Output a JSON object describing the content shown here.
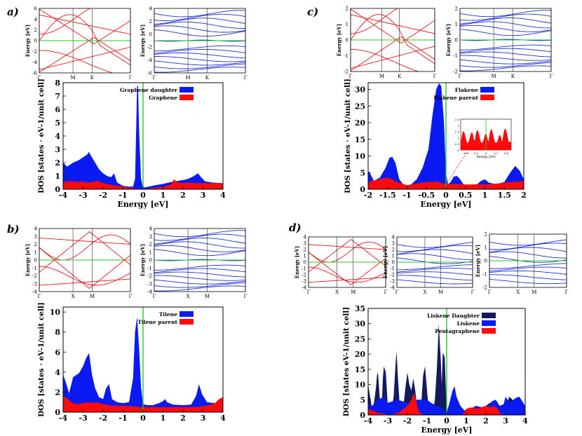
{
  "colors": {
    "band_red": "#e8141c",
    "band_blue": "#1f2fd0",
    "fermi_green": "#22cc22",
    "dos_blue": "#0a1af2",
    "dos_red": "#ff0a0a",
    "dos_navy": "#141a5e",
    "axis": "#000000"
  },
  "panels": [
    {
      "label": "a)",
      "band_structures": [
        {
          "name": "graphene-bands",
          "color_key": "band_red",
          "ylabel": "Energy [eV]",
          "yticks": [
            "6",
            "4",
            "2",
            "0",
            "-2",
            "-4",
            "-6"
          ],
          "kpoints": [
            "Γ",
            "M",
            "K",
            "Γ"
          ]
        },
        {
          "name": "graphene-daughter-bands",
          "color_key": "band_blue",
          "ylabel": "Energy [eV]",
          "yticks": [
            "4",
            "2",
            "0",
            "-2",
            "-4",
            "-6"
          ],
          "kpoints": [
            "Γ",
            "M",
            "K",
            "Γ"
          ]
        }
      ]
    },
    {
      "label": "b)",
      "band_structures": [
        {
          "name": "tilene-parent-bands",
          "color_key": "band_red",
          "ylabel": "Energy [eV]",
          "yticks": [
            "4",
            "3",
            "2",
            "1",
            "0",
            "-1",
            "-2",
            "-3",
            "-4"
          ],
          "kpoints": [
            "Γ",
            "X",
            "M",
            "Γ"
          ]
        },
        {
          "name": "tilene-bands",
          "color_key": "band_blue",
          "ylabel": "Energy [eV]",
          "yticks": [
            "4",
            "3",
            "2",
            "1",
            "0",
            "-1",
            "-2",
            "-3",
            "-4"
          ],
          "kpoints": [
            "Γ",
            "X",
            "M",
            "Γ"
          ]
        }
      ]
    },
    {
      "label": "c)",
      "band_structures": [
        {
          "name": "flakene-parent-bands",
          "color_key": "band_red",
          "ylabel": "Energy [eV]",
          "yticks": [
            "2",
            "1",
            "0",
            "-1",
            "-2"
          ],
          "kpoints": [
            "Γ",
            "M",
            "K",
            "Γ"
          ]
        },
        {
          "name": "flakene-bands",
          "color_key": "band_blue",
          "ylabel": "Energy [eV]",
          "yticks": [
            "2",
            "1",
            "0",
            "-1",
            "-2"
          ],
          "kpoints": [
            "Γ",
            "M",
            "K",
            "Γ"
          ]
        }
      ]
    },
    {
      "label": "d)",
      "band_structures": [
        {
          "name": "pentagraphene-bands",
          "color_key": "band_red",
          "ylabel": "Energy [eV]",
          "yticks": [
            "4",
            "3",
            "2",
            "1",
            "0",
            "-1",
            "-2",
            "-3",
            "-4"
          ],
          "kpoints": [
            "Γ",
            "X",
            "M",
            "Γ"
          ]
        },
        {
          "name": "liskene-bands",
          "color_key": "band_blue",
          "ylabel": "Energy [eV]",
          "yticks": [
            "4",
            "3",
            "2",
            "1",
            "0",
            "-1",
            "-2",
            "-3",
            "-4"
          ],
          "kpoints": [
            "Γ",
            "X",
            "M",
            "Γ"
          ]
        },
        {
          "name": "liskene-daughter-bands",
          "color_key": "band_blue",
          "ylabel": "Energy [eV]",
          "yticks": [
            "2",
            "1",
            "0",
            "-1",
            "-2"
          ],
          "kpoints": [
            "Γ",
            "X",
            "M",
            "Γ"
          ]
        }
      ]
    }
  ],
  "chart_data": [
    {
      "id": "a",
      "type": "area",
      "title": "",
      "xlabel": "Energy [eV]",
      "ylabel": "DOS [states · eV-1/unit cell]",
      "xlim": [
        -4,
        4
      ],
      "ylim": [
        0,
        8
      ],
      "xticks": [
        -4,
        -3,
        -2,
        -1,
        0,
        1,
        2,
        3,
        4
      ],
      "yticks": [
        0,
        1,
        2,
        3,
        4,
        5,
        6,
        7,
        8
      ],
      "legend": [
        "Graphene daughter",
        "Graphene"
      ],
      "series": [
        {
          "name": "Graphene daughter",
          "color_key": "dos_blue",
          "x": [
            -4,
            -3.8,
            -3.5,
            -3.2,
            -3.0,
            -2.8,
            -2.7,
            -2.6,
            -2.4,
            -2.2,
            -2.0,
            -1.8,
            -1.6,
            -1.45,
            -1.3,
            -1.0,
            -0.7,
            -0.5,
            -0.4,
            -0.35,
            -0.3,
            -0.25,
            -0.2,
            -0.1,
            0.0,
            0.3,
            0.6,
            1.0,
            1.4,
            1.8,
            2.2,
            2.5,
            2.75,
            2.9,
            3.1,
            3.5,
            4
          ],
          "values": [
            2.0,
            1.7,
            2.0,
            2.2,
            2.4,
            2.6,
            2.8,
            2.5,
            2.0,
            1.5,
            1.2,
            1.0,
            0.9,
            1.2,
            0.5,
            0.25,
            0.2,
            0.2,
            0.8,
            4.0,
            7.7,
            7.8,
            4.5,
            0.8,
            0.12,
            0.2,
            0.3,
            0.4,
            0.55,
            0.65,
            0.75,
            0.95,
            1.2,
            0.9,
            0.6,
            0.5,
            0.45
          ]
        },
        {
          "name": "Graphene",
          "color_key": "dos_red",
          "x": [
            -4,
            -3.8,
            -3.5,
            -3.2,
            -3.0,
            -2.8,
            -2.5,
            -2.3,
            -2.0,
            -1.5,
            -1.0,
            -0.5,
            0.0,
            0.5,
            1.0,
            1.4,
            1.55,
            1.7,
            1.9,
            2.2,
            2.6,
            3.0,
            3.5,
            4
          ],
          "values": [
            0.55,
            0.6,
            0.6,
            0.55,
            0.6,
            0.5,
            0.55,
            0.65,
            0.45,
            0.3,
            0.2,
            0.08,
            0.0,
            0.1,
            0.2,
            0.35,
            0.75,
            0.55,
            0.45,
            0.5,
            0.45,
            0.45,
            0.45,
            0.45
          ]
        }
      ]
    },
    {
      "id": "b",
      "type": "area",
      "title": "",
      "xlabel": "",
      "ylabel": "DOS [states · eV-1/unit cell]",
      "xlim": [
        -4,
        4
      ],
      "ylim": [
        0,
        10.5
      ],
      "xticks": [
        -4,
        -3,
        -2,
        -1,
        0,
        1,
        2,
        3,
        4
      ],
      "yticks": [
        0,
        2,
        4,
        6,
        8,
        10
      ],
      "legend": [
        "Tilene",
        "Tilene parent"
      ],
      "series": [
        {
          "name": "Tilene",
          "color_key": "dos_blue",
          "x": [
            -4,
            -3.9,
            -3.7,
            -3.5,
            -3.2,
            -3.0,
            -2.85,
            -2.7,
            -2.55,
            -2.4,
            -2.2,
            -2.0,
            -1.85,
            -1.7,
            -1.55,
            -1.3,
            -1.0,
            -0.7,
            -0.5,
            -0.4,
            -0.3,
            -0.2,
            -0.1,
            0.0,
            0.2,
            0.5,
            0.8,
            1.0,
            1.1,
            1.2,
            1.5,
            2.0,
            2.4,
            2.65,
            2.8,
            2.95,
            3.2,
            3.6,
            4
          ],
          "values": [
            3.7,
            3.2,
            1.9,
            3.5,
            3.9,
            4.6,
            5.4,
            5.9,
            3.7,
            2.4,
            1.5,
            1.3,
            2.4,
            2.8,
            1.3,
            1.0,
            0.9,
            1.0,
            3.4,
            8.0,
            9.5,
            6.5,
            2.5,
            0.8,
            0.7,
            0.7,
            0.9,
            1.1,
            1.3,
            1.0,
            0.75,
            0.7,
            0.75,
            1.6,
            2.8,
            1.8,
            1.0,
            0.9,
            1.1
          ]
        },
        {
          "name": "Tilene parent",
          "color_key": "dos_red",
          "x": [
            -4,
            -3.8,
            -3.6,
            -3.3,
            -3.0,
            -2.7,
            -2.5,
            -2.3,
            -2.0,
            -1.7,
            -1.4,
            -1.0,
            -0.6,
            -0.3,
            0.0,
            0.5,
            1.0,
            1.5,
            2.0,
            2.5,
            2.8,
            3.0,
            3.3,
            3.6,
            3.8,
            4
          ],
          "values": [
            1.6,
            1.4,
            1.0,
            0.8,
            0.9,
            1.0,
            0.9,
            1.0,
            0.8,
            0.7,
            0.65,
            0.65,
            0.6,
            0.55,
            0.5,
            0.5,
            0.5,
            0.5,
            0.5,
            0.5,
            0.55,
            0.6,
            0.7,
            0.9,
            1.3,
            1.5
          ]
        }
      ]
    },
    {
      "id": "c",
      "type": "area",
      "title": "",
      "xlabel": "Energy [eV]",
      "ylabel": "DOS [states · eV-1/unit cell]",
      "xlim": [
        -2,
        2
      ],
      "ylim": [
        0,
        32
      ],
      "xticks": [
        -2,
        -1.5,
        -1,
        -0.5,
        0,
        0.5,
        1,
        1.5,
        2
      ],
      "xtick_labels": [
        "-2",
        "-1.5",
        "-1",
        "-0.5",
        "0",
        "0.5",
        "1",
        "1.5",
        "2"
      ],
      "yticks": [
        0,
        5,
        10,
        15,
        20,
        25,
        30
      ],
      "legend": [
        "Flakene",
        "Flakene parent"
      ],
      "inset": {
        "xlabel": "Energy [eV]",
        "xticks": [
          "-0.4",
          "-0.2",
          "0",
          "0.2",
          "0.4"
        ],
        "yticks": [
          "2.5",
          "2",
          "1.5",
          "1",
          "0.5",
          "0"
        ]
      },
      "series": [
        {
          "name": "Flakene",
          "color_key": "dos_blue",
          "x": [
            -2,
            -1.95,
            -1.85,
            -1.7,
            -1.55,
            -1.45,
            -1.38,
            -1.3,
            -1.2,
            -1.1,
            -1.0,
            -0.9,
            -0.75,
            -0.6,
            -0.45,
            -0.35,
            -0.25,
            -0.18,
            -0.12,
            -0.05,
            0.0,
            0.05,
            0.12,
            0.2,
            0.28,
            0.35,
            0.45,
            0.6,
            0.8,
            0.9,
            1.0,
            1.1,
            1.3,
            1.5,
            1.65,
            1.78,
            1.9,
            2
          ],
          "values": [
            5.5,
            4.8,
            2.5,
            3.5,
            6.5,
            9.5,
            9.7,
            8.0,
            3.0,
            1.5,
            1.2,
            1.4,
            3.0,
            6.5,
            12,
            22,
            30,
            31.8,
            31,
            20,
            5,
            1.5,
            2.2,
            3.8,
            4.0,
            3.2,
            1.5,
            1.0,
            1.5,
            2.5,
            3.0,
            2.0,
            1.5,
            2.2,
            5.0,
            7.0,
            5.5,
            3.0
          ]
        },
        {
          "name": "Flakene parent",
          "color_key": "dos_red",
          "x": [
            -2,
            -1.9,
            -1.75,
            -1.6,
            -1.5,
            -1.4,
            -1.3,
            -1.15,
            -1.0,
            -0.8,
            -0.6,
            -0.4,
            -0.2,
            0.0,
            0.2,
            0.4,
            0.6,
            0.8,
            1.0,
            1.2,
            1.4,
            1.6,
            1.8,
            2
          ],
          "values": [
            2.0,
            2.6,
            2.8,
            3.3,
            3.5,
            3.1,
            2.4,
            1.8,
            1.2,
            1.6,
            2.0,
            2.3,
            2.2,
            1.5,
            1.6,
            1.5,
            1.4,
            1.5,
            1.4,
            1.6,
            1.8,
            2.1,
            2.3,
            2.4
          ]
        }
      ]
    },
    {
      "id": "d",
      "type": "area",
      "title": "",
      "xlabel": "Energy [eV]",
      "ylabel": "DOS [states  eV-1/unit cell]",
      "xlim": [
        -4,
        4
      ],
      "ylim": [
        0,
        35
      ],
      "xticks": [
        -4,
        -3,
        -2,
        -1,
        0,
        1,
        2,
        3,
        4
      ],
      "yticks": [
        0,
        5,
        10,
        15,
        20,
        25,
        30,
        35
      ],
      "legend": [
        "Liskene Daughter",
        "Liskene",
        "Pentagraphene"
      ],
      "series": [
        {
          "name": "Liskene Daughter",
          "color_key": "dos_navy",
          "x": [
            -4,
            -3.9,
            -3.8,
            -3.7,
            -3.6,
            -3.55,
            -3.5,
            -3.4,
            -3.3,
            -3.25,
            -3.2,
            -3.1,
            -3.0,
            -2.9,
            -2.8,
            -2.7,
            -2.6,
            -2.55,
            -2.5,
            -2.4,
            -2.3,
            -2.2,
            -2.1,
            -2.0,
            -1.9,
            -1.8,
            -1.7,
            -1.6,
            -1.5,
            -1.4,
            -1.3,
            -1.2,
            -1.1,
            -1.0,
            -0.9,
            -0.8,
            -0.7,
            -0.6,
            -0.5,
            -0.4,
            -0.3,
            -0.25,
            -0.2,
            -0.1,
            0.0,
            0.2,
            0.5,
            0.9,
            1.5,
            2.0,
            2.2,
            2.4,
            2.6,
            2.8,
            3.0,
            3.2,
            3.35,
            3.5,
            3.7,
            3.9,
            4
          ],
          "values": [
            10,
            6,
            2,
            4,
            9,
            13,
            14,
            5,
            4,
            12,
            16,
            14,
            3,
            1,
            2,
            6,
            17,
            21,
            14,
            4,
            2,
            3,
            9,
            14,
            10,
            8,
            12,
            8,
            2,
            1,
            3,
            13,
            16,
            8,
            1,
            0.5,
            1,
            5,
            15,
            30,
            18,
            10,
            20.5,
            19,
            1,
            0.5,
            0.5,
            1,
            2,
            3,
            4,
            2,
            1,
            1,
            3,
            6,
            5,
            3,
            1,
            0.5,
            0.3
          ]
        },
        {
          "name": "Liskene",
          "color_key": "dos_blue",
          "x": [
            -4,
            -3.8,
            -3.5,
            -3.2,
            -3.0,
            -2.5,
            -2.0,
            -1.5,
            -1.2,
            -1.0,
            -0.8,
            -0.5,
            -0.2,
            0.0,
            0.1,
            0.3,
            0.4,
            0.5,
            0.7,
            0.9,
            1.2,
            1.5,
            1.8,
            2.1,
            2.3,
            2.5,
            2.7,
            2.9,
            3.0,
            3.2,
            3.5,
            3.7,
            3.9,
            4
          ],
          "values": [
            4,
            3,
            5,
            6,
            4,
            5,
            4,
            5,
            5,
            5,
            4,
            3,
            2,
            1,
            3,
            8,
            9.5,
            6,
            3,
            1.5,
            2,
            3,
            2.5,
            3,
            4.5,
            5,
            3,
            3.5,
            6,
            4,
            5.5,
            6,
            4,
            3
          ]
        },
        {
          "name": "Pentagraphene",
          "color_key": "dos_red",
          "x": [
            -4,
            -3.8,
            -3.6,
            -3.4,
            -3.2,
            -3.0,
            -2.8,
            -2.6,
            -2.4,
            -2.2,
            -2.0,
            -1.8,
            -1.7,
            -1.6,
            -1.5,
            -1.4,
            -1.2,
            -1.0,
            -0.8,
            -0.6,
            -0.4,
            -0.2,
            0.0,
            0.2,
            0.5,
            0.8,
            0.9,
            1.0,
            1.2,
            1.5,
            1.8,
            2.0,
            2.2,
            2.4,
            2.6,
            2.7,
            2.8,
            3.0,
            3.5,
            4
          ],
          "values": [
            2,
            1.5,
            1,
            0.5,
            0.5,
            0,
            0,
            0.5,
            1,
            2,
            3,
            5,
            7,
            6,
            3,
            1,
            0,
            0,
            0,
            0,
            0,
            0,
            0,
            0,
            0,
            0,
            1,
            2,
            2.5,
            2,
            2.5,
            3,
            2.5,
            3,
            2,
            1,
            0,
            0,
            0,
            0
          ]
        }
      ]
    }
  ]
}
